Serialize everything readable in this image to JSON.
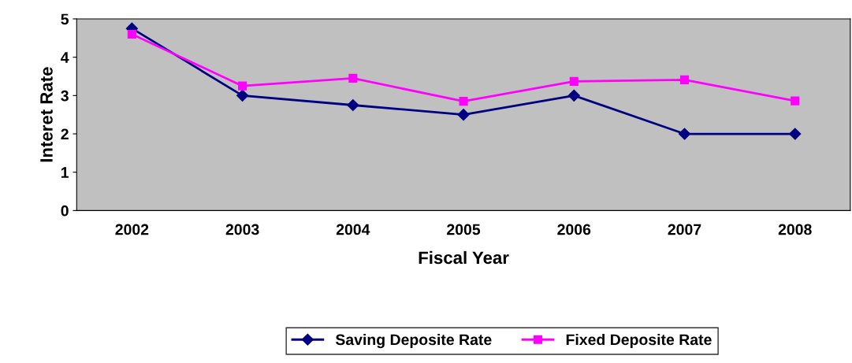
{
  "chart_data": {
    "type": "line",
    "xlabel": "Fiscal Year",
    "ylabel": "Interet Rate",
    "categories": [
      "2002",
      "2003",
      "2004",
      "2005",
      "2006",
      "2007",
      "2008"
    ],
    "series": [
      {
        "name": "Saving Deposite Rate",
        "color": "#000080",
        "marker": "diamond",
        "values": [
          4.75,
          3.0,
          2.75,
          2.5,
          3.0,
          2.0,
          2.0
        ]
      },
      {
        "name": "Fixed Deposite Rate",
        "color": "#ff00ff",
        "marker": "square",
        "values": [
          4.6,
          3.25,
          3.45,
          2.85,
          3.37,
          3.41,
          2.86
        ]
      }
    ],
    "ylim": [
      0,
      5
    ],
    "yticks": [
      0,
      1,
      2,
      3,
      4,
      5
    ],
    "grid": false,
    "legend": "bottom"
  }
}
